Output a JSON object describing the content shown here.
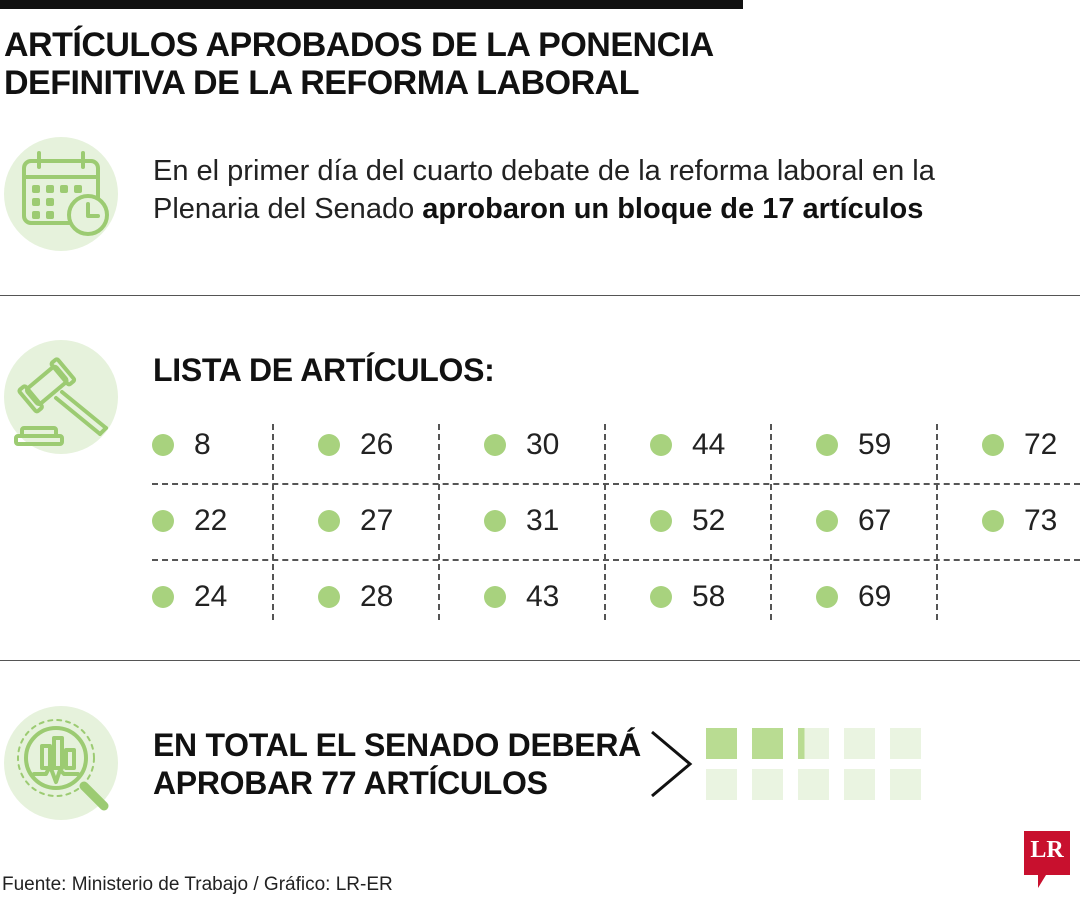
{
  "title": {
    "line1": "ARTÍCULOS APROBADOS DE LA PONENCIA",
    "line2": "DEFINITIVA DE LA REFORMA LABORAL"
  },
  "intro": {
    "line1": "En el primer día del cuarto debate de la reforma laboral en la",
    "line2_regular": "Plenaria del Senado ",
    "line2_bold": "aprobaron un bloque de 17 artículos"
  },
  "list": {
    "title": "LISTA DE ARTÍCULOS:",
    "rows": [
      [
        "8",
        "26",
        "30",
        "44",
        "59",
        "72"
      ],
      [
        "22",
        "27",
        "31",
        "52",
        "67",
        "73"
      ],
      [
        "24",
        "28",
        "43",
        "58",
        "69"
      ]
    ]
  },
  "total": {
    "line1": "EN TOTAL EL SENADO DEBERÁ",
    "line2": "APROBAR 77 ARTÍCULOS",
    "approved_fraction": 0.221
  },
  "source": "Fuente: Ministerio de Trabajo / Gráfico: LR-ER",
  "logo": "LR",
  "colors": {
    "accent_green": "#a8d27e",
    "light_green": "#e6f2dc",
    "square_green": "#b9dc92",
    "square_faded": "#eaf4e1",
    "logo_red": "#c8102e"
  },
  "icons": {
    "intro": "calendar-clock-icon",
    "list": "gavel-icon",
    "total": "magnifier-chart-icon",
    "arrow": "chevron-right-icon"
  }
}
